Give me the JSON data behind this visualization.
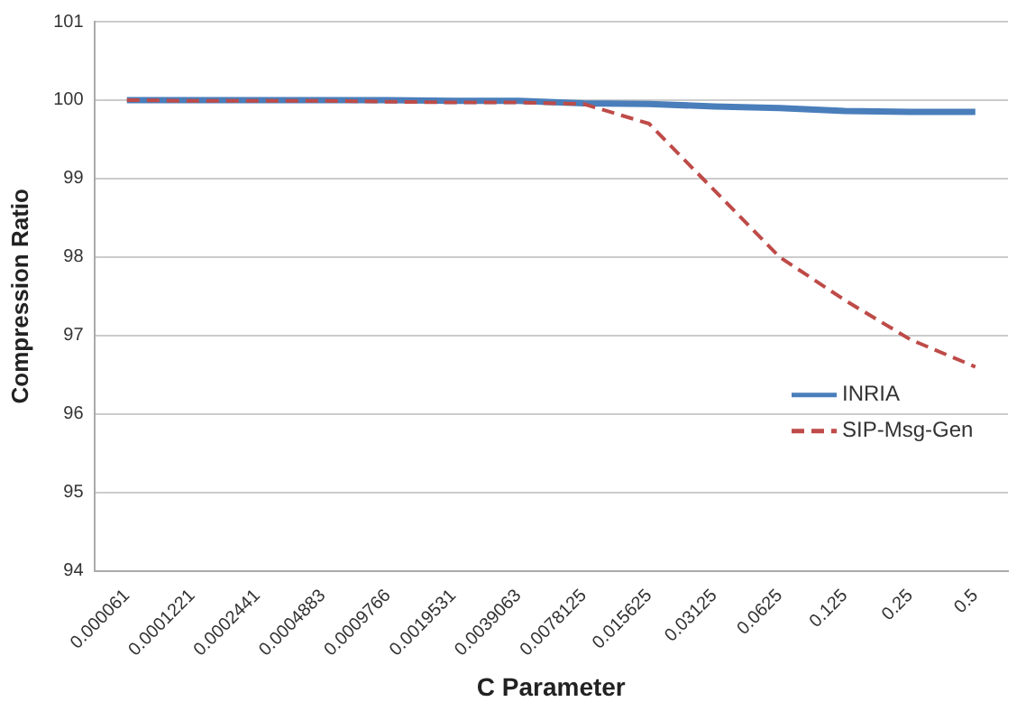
{
  "chart_data": {
    "type": "line",
    "xlabel": "C Parameter",
    "ylabel": "Compression Ratio",
    "categories": [
      "0.000061",
      "0.0001221",
      "0.0002441",
      "0.0004883",
      "0.0009766",
      "0.0019531",
      "0.0039063",
      "0.0078125",
      "0.015625",
      "0.03125",
      "0.0625",
      "0.125",
      "0.25",
      "0.5"
    ],
    "series": [
      {
        "name": "INRIA",
        "color": "#4a7ebb",
        "line_style": "solid",
        "values": [
          100,
          100,
          100,
          100,
          100,
          99.99,
          99.99,
          99.96,
          99.95,
          99.92,
          99.9,
          99.86,
          99.85,
          99.85
        ]
      },
      {
        "name": "SIP-Msg-Gen",
        "color": "#be4b48",
        "line_style": "dashed",
        "values": [
          100,
          99.99,
          99.99,
          99.99,
          99.98,
          99.97,
          99.97,
          99.95,
          99.7,
          98.85,
          98.0,
          97.45,
          96.95,
          96.6
        ]
      }
    ],
    "ylim": [
      94,
      101
    ],
    "yticks": [
      94,
      95,
      96,
      97,
      98,
      99,
      100,
      101
    ],
    "grid": "y",
    "legend": "right",
    "marker": "none"
  }
}
